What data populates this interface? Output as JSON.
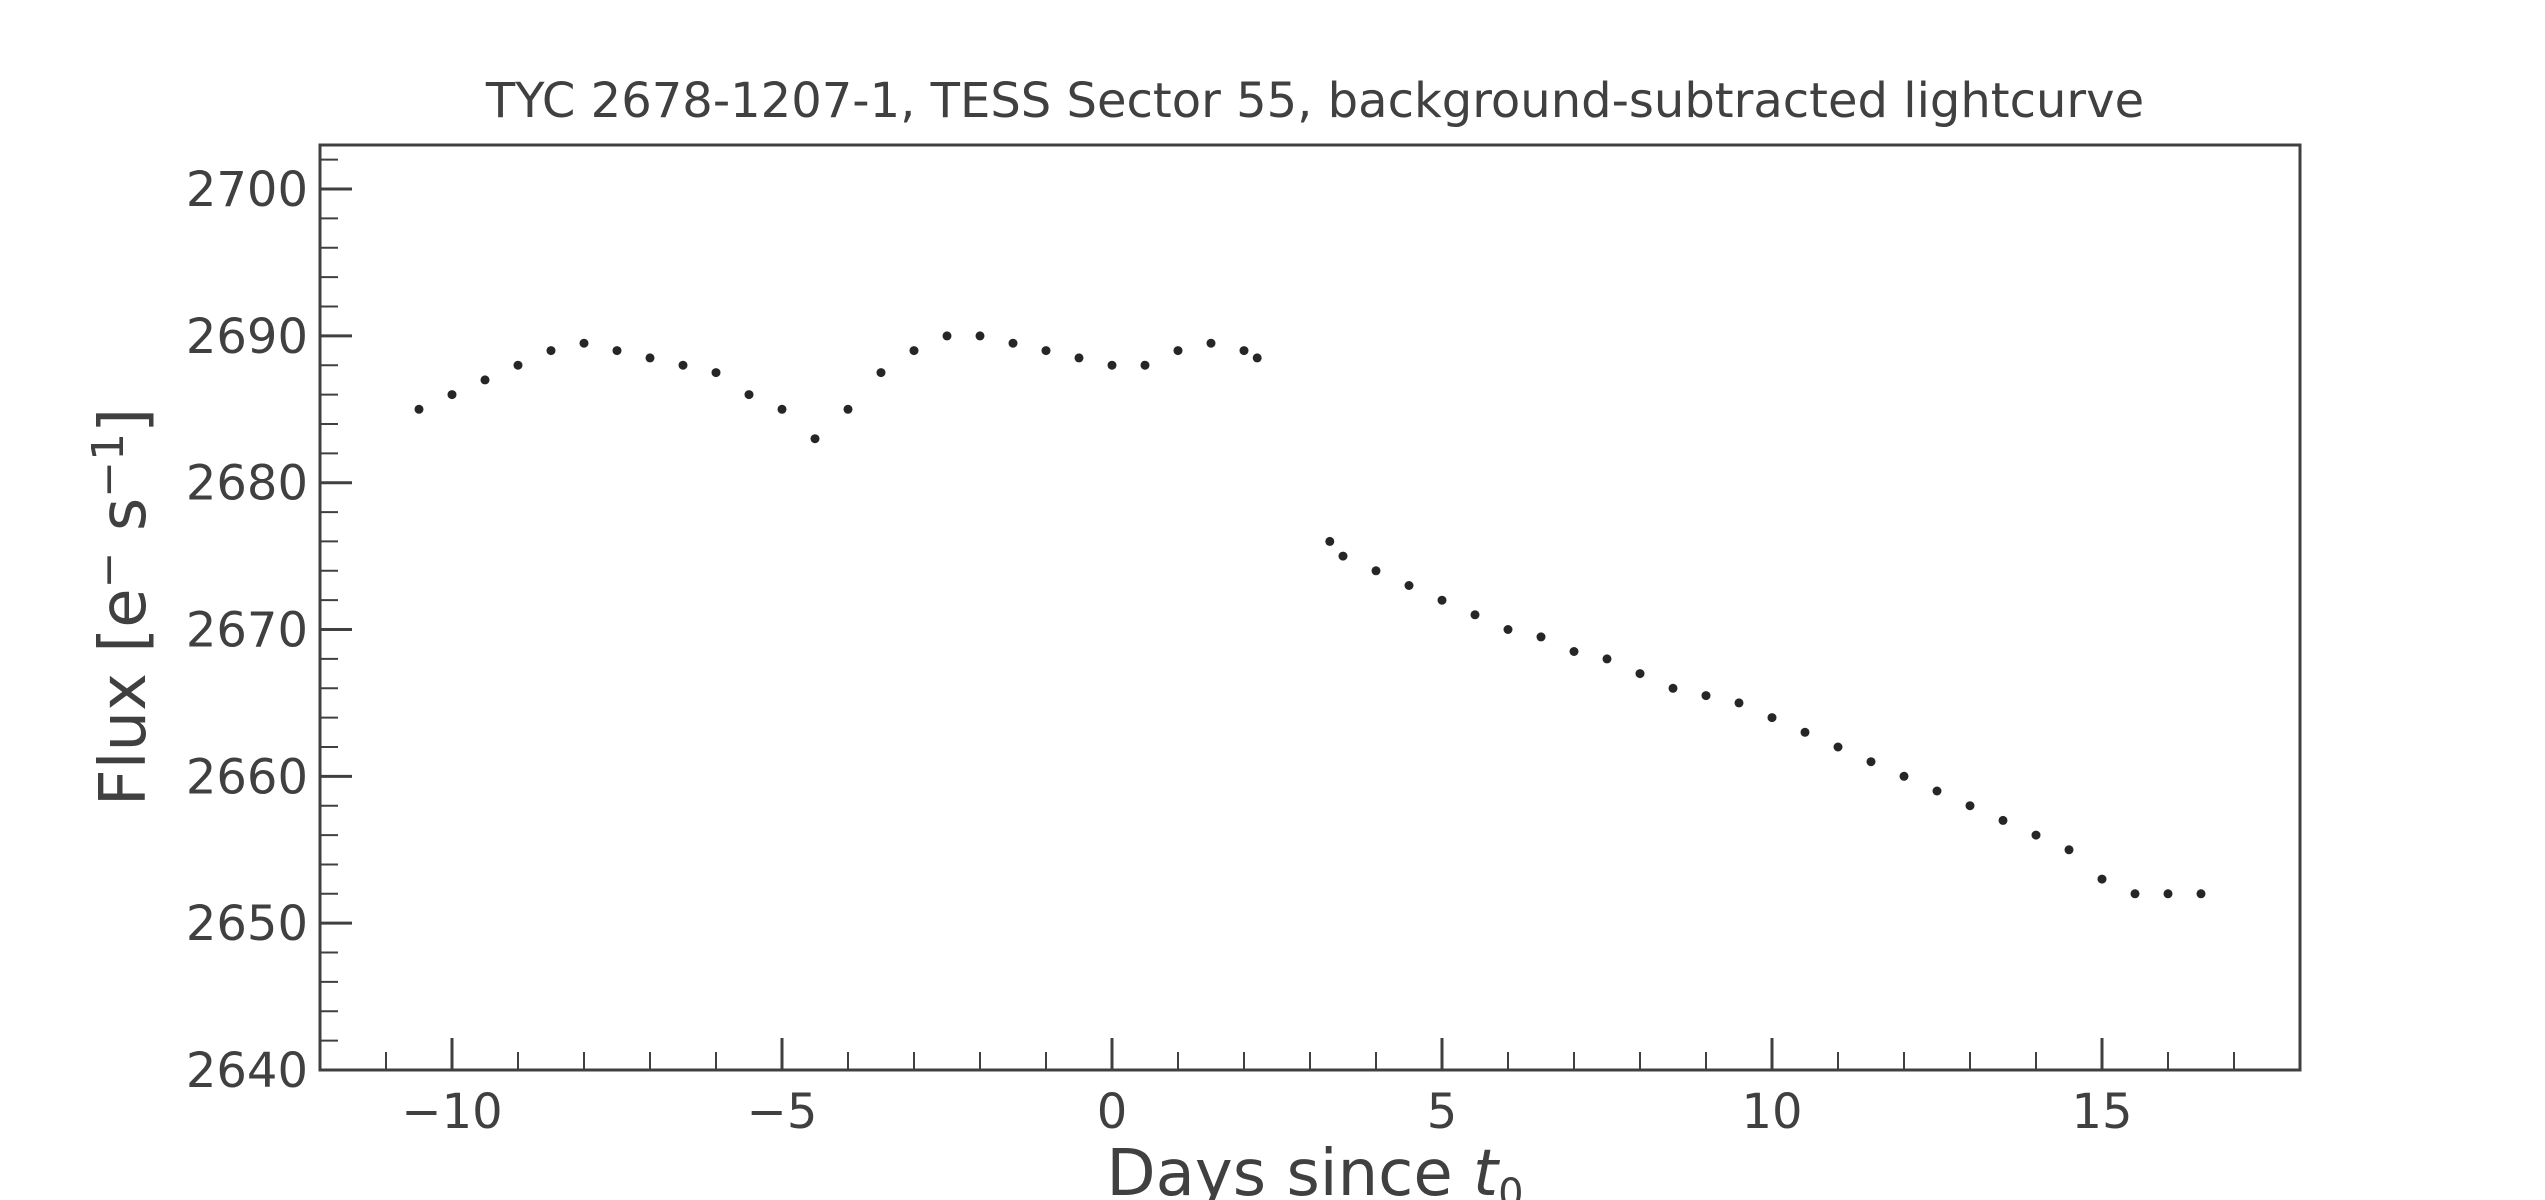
{
  "chart_data": {
    "type": "scatter",
    "title": "TYC 2678-1207-1, TESS Sector 55, background-subtracted lightcurve",
    "xlabel": "Days since t0",
    "ylabel": "Flux [e⁻ s⁻¹]",
    "xlim": [
      -12,
      18
    ],
    "ylim": [
      2640,
      2703
    ],
    "x_ticks": [
      -10,
      -5,
      0,
      5,
      10,
      15
    ],
    "x_tick_labels": [
      "−10",
      "−5",
      "0",
      "5",
      "10",
      "15"
    ],
    "y_ticks": [
      2640,
      2650,
      2660,
      2670,
      2680,
      2690,
      2700
    ],
    "y_tick_labels": [
      "2640",
      "2650",
      "2660",
      "2670",
      "2680",
      "2690",
      "2700"
    ],
    "grid": false,
    "legend": "none",
    "marker_color": "#262626",
    "series": [
      {
        "x": [
          -10.5,
          -10.0,
          -9.5,
          -9.0,
          -8.5,
          -8.0,
          -7.5,
          -7.0,
          -6.5,
          -6.0,
          -5.5,
          -5.0,
          -4.5,
          -4.0,
          -3.5,
          -3.0,
          -2.5,
          -2.0,
          -1.5,
          -1.0,
          -0.5,
          0.0,
          0.5,
          1.0,
          1.5,
          2.0,
          2.2,
          3.3,
          3.5,
          4.0,
          4.5,
          5.0,
          5.5,
          6.0,
          6.5,
          7.0,
          7.5,
          8.0,
          8.5,
          9.0,
          9.5,
          10.0,
          10.5,
          11.0,
          11.5,
          12.0,
          12.5,
          13.0,
          13.5,
          14.0,
          14.5,
          15.0,
          15.5,
          16.0,
          16.5
        ],
        "y": [
          2685,
          2686,
          2687,
          2688,
          2689,
          2689.5,
          2689,
          2688.5,
          2688,
          2687.5,
          2686,
          2685,
          2683,
          2685,
          2687.5,
          2689,
          2690,
          2690,
          2689.5,
          2689,
          2688.5,
          2688,
          2688,
          2689,
          2689.5,
          2689,
          2688.5,
          2676,
          2675,
          2674,
          2673,
          2672,
          2671,
          2670,
          2669.5,
          2668.5,
          2668,
          2667,
          2666,
          2665.5,
          2665,
          2664,
          2663,
          2662,
          2661,
          2660,
          2659,
          2658,
          2657,
          2656,
          2655,
          2653,
          2652,
          2652,
          2652
        ]
      }
    ]
  }
}
